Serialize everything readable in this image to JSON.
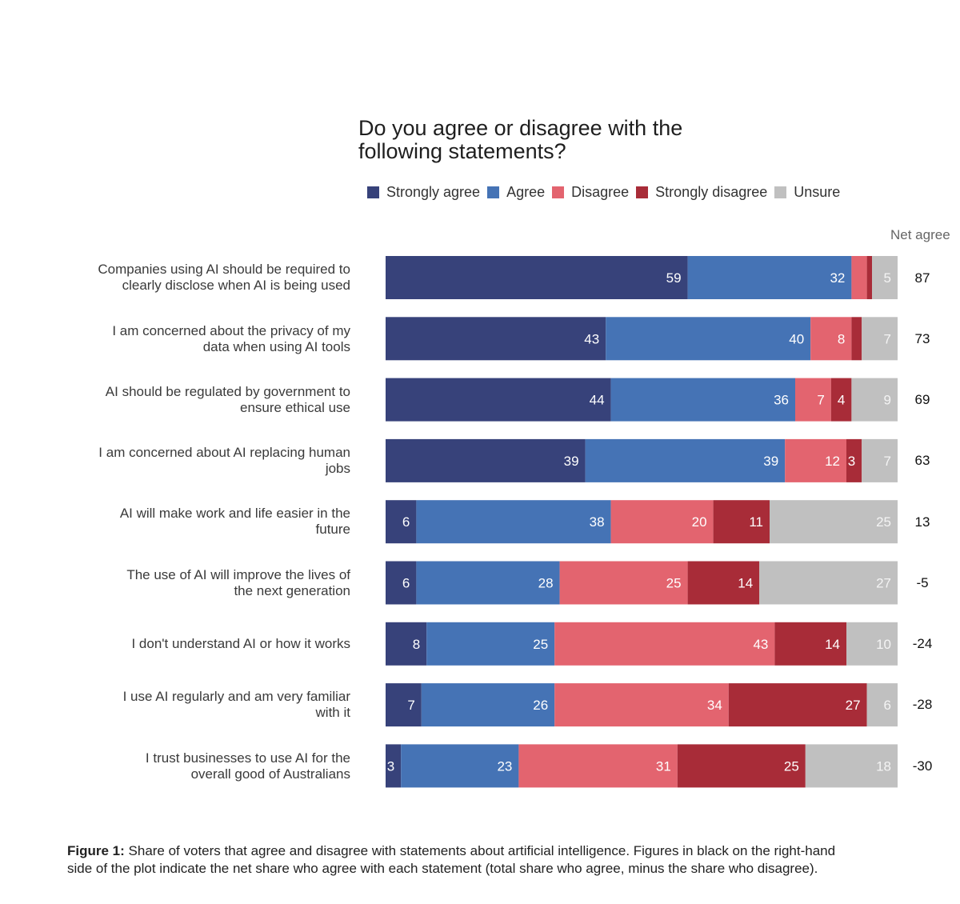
{
  "chart_data": {
    "type": "bar",
    "orientation": "horizontal",
    "stacked": true,
    "title": "Do you agree or disagree with the\nfollowing statements?",
    "net_header": "Net agree",
    "categories": [
      "Companies using AI should be required to\nclearly disclose when AI is being used",
      "I am concerned about the privacy of my\ndata when using AI tools",
      "AI should be regulated by government to\nensure ethical use",
      "I am concerned about AI replacing human\njobs",
      "AI will make work and life easier in the\nfuture",
      "The use of AI will improve the lives of\nthe next generation",
      "I don't understand AI or how it works",
      "I use AI regularly and am very familiar\nwith it",
      "I trust businesses to use AI for the\noverall good of Australians"
    ],
    "series": [
      {
        "name": "Strongly agree",
        "color": "#37427a",
        "label_color": "#ffffff",
        "values": [
          59,
          43,
          44,
          39,
          6,
          6,
          8,
          7,
          3
        ]
      },
      {
        "name": "Agree",
        "color": "#4573b5",
        "label_color": "#ffffff",
        "values": [
          32,
          40,
          36,
          39,
          38,
          28,
          25,
          26,
          23
        ]
      },
      {
        "name": "Disagree",
        "color": "#e3646f",
        "label_color": "#ffffff",
        "values": [
          3,
          8,
          7,
          12,
          20,
          25,
          43,
          34,
          31
        ]
      },
      {
        "name": "Strongly disagree",
        "color": "#a82c38",
        "label_color": "#ffffff",
        "values": [
          1,
          2,
          4,
          3,
          11,
          14,
          14,
          27,
          25
        ]
      },
      {
        "name": "Unsure",
        "color": "#c0c0c0",
        "label_color": "#f4f4f4",
        "values": [
          5,
          7,
          9,
          7,
          25,
          27,
          10,
          6,
          18
        ]
      }
    ],
    "shown_labels": [
      [
        "59",
        "32",
        "",
        "",
        "5"
      ],
      [
        "43",
        "40",
        "8",
        "",
        "7"
      ],
      [
        "44",
        "36",
        "7",
        "4",
        "9"
      ],
      [
        "39",
        "39",
        "12",
        "3",
        "7"
      ],
      [
        "6",
        "38",
        "20",
        "11",
        "25"
      ],
      [
        "6",
        "28",
        "25",
        "14",
        "27"
      ],
      [
        "8",
        "25",
        "43",
        "14",
        "10"
      ],
      [
        "7",
        "26",
        "34",
        "27",
        "6"
      ],
      [
        "3",
        "23",
        "31",
        "25",
        "18"
      ]
    ],
    "net_agree": [
      87,
      73,
      69,
      63,
      13,
      -5,
      -24,
      -28,
      -30
    ],
    "xlim": [
      0,
      100
    ]
  },
  "caption": {
    "label": "Figure 1:",
    "text": " Share of voters that agree and disagree with statements about artificial intelligence. Figures in black on the right-hand side of the plot indicate the net share who agree with each statement (total share who agree, minus the share who disagree)."
  }
}
